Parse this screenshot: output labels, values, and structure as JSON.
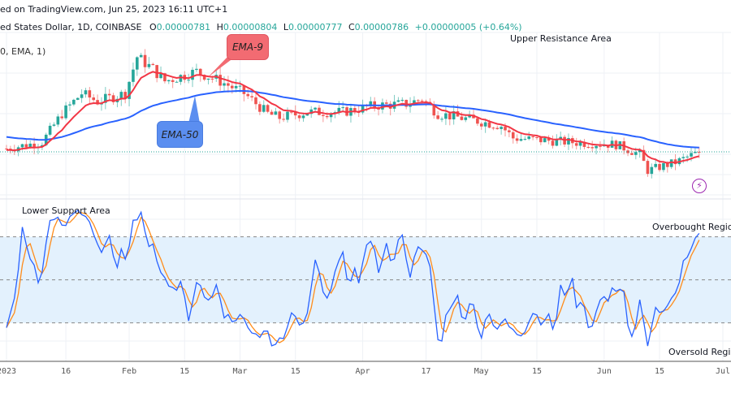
{
  "header": {
    "published": "ed on TradingView.com, Jun 25, 2023 16:11 UTC+1",
    "symbol": "ed States Dollar, 1D, COINBASE",
    "open_label": "O",
    "open": "0.00000781",
    "high_label": "H",
    "high": "0.00000804",
    "low_label": "L",
    "low": "0.00000777",
    "close_label": "C",
    "close": "0.00000786",
    "change": "+0.00000005 (+0.64%)",
    "indicator": "0, EMA, 1)"
  },
  "annotations": {
    "upper_resistance": "Upper Resistance Area",
    "lower_support": "Lower Support Area",
    "overbought": "Overbought Region",
    "oversold": "Oversold Region",
    "ema9_callout": "EMA-9",
    "ema50_callout": "EMA-50"
  },
  "icons": {
    "alert": "lightning-icon"
  },
  "colors": {
    "up": "#26a69a",
    "down": "#ef5350",
    "ema9": "#f23645",
    "ema50": "#2962ff",
    "stoch_k": "#2962ff",
    "stoch_d": "#ff8c1a",
    "band": "#e3f1fd",
    "ema9_callout": "#f26b72",
    "ema50_callout": "#5b8ef0",
    "alert": "#9c27b0"
  },
  "chart_data": {
    "type": "candlestick",
    "x_ticks": [
      "2023",
      "16",
      "Feb",
      "15",
      "Mar",
      "15",
      "Apr",
      "17",
      "May",
      "15",
      "Jun",
      "15",
      "Jul"
    ],
    "x_tick_dates": [
      "2023-01-01",
      "2023-01-16",
      "2023-02-01",
      "2023-02-15",
      "2023-03-01",
      "2023-03-15",
      "2023-04-01",
      "2023-04-17",
      "2023-05-01",
      "2023-05-15",
      "2023-06-01",
      "2023-06-15",
      "2023-07-01"
    ],
    "close_path": [
      [
        "2023-01-01",
        7.94e-06
      ],
      [
        "2023-01-10",
        8.1e-06
      ],
      [
        "2023-01-15",
        8.8e-06
      ],
      [
        "2023-01-20",
        9.3e-06
      ],
      [
        "2023-01-24",
        9.1e-06
      ],
      [
        "2023-01-31",
        9.3e-06
      ],
      [
        "2023-02-03",
        1.02e-05
      ],
      [
        "2023-02-07",
        9.9e-06
      ],
      [
        "2023-02-10",
        9.6e-06
      ],
      [
        "2023-02-18",
        9.84e-06
      ],
      [
        "2023-02-24",
        9.6e-06
      ],
      [
        "2023-03-02",
        9.3e-06
      ],
      [
        "2023-03-08",
        8.8e-06
      ],
      [
        "2023-03-11",
        8.7e-06
      ],
      [
        "2023-03-18",
        8.84e-06
      ],
      [
        "2023-03-27",
        8.84e-06
      ],
      [
        "2023-04-04",
        9e-06
      ],
      [
        "2023-04-12",
        9.04e-06
      ],
      [
        "2023-04-16",
        9.16e-06
      ],
      [
        "2023-04-20",
        8.8e-06
      ],
      [
        "2023-04-29",
        8.64e-06
      ],
      [
        "2023-05-06",
        8.5e-06
      ],
      [
        "2023-05-09",
        8.2e-06
      ],
      [
        "2023-05-23",
        8.1e-06
      ],
      [
        "2023-06-04",
        8.04e-06
      ],
      [
        "2023-06-10",
        7.8e-06
      ],
      [
        "2023-06-12",
        7.4e-06
      ],
      [
        "2023-06-19",
        7.6e-06
      ],
      [
        "2023-06-25",
        7.86e-06
      ]
    ],
    "last_close": 7.86e-06,
    "indicators": [
      {
        "name": "EMA-9",
        "period": 9
      },
      {
        "name": "EMA-50",
        "period": 50
      },
      {
        "type": "stochastic",
        "levels": [
          80,
          50,
          20
        ],
        "ylim": [
          0,
          100
        ]
      }
    ],
    "grid": true
  }
}
